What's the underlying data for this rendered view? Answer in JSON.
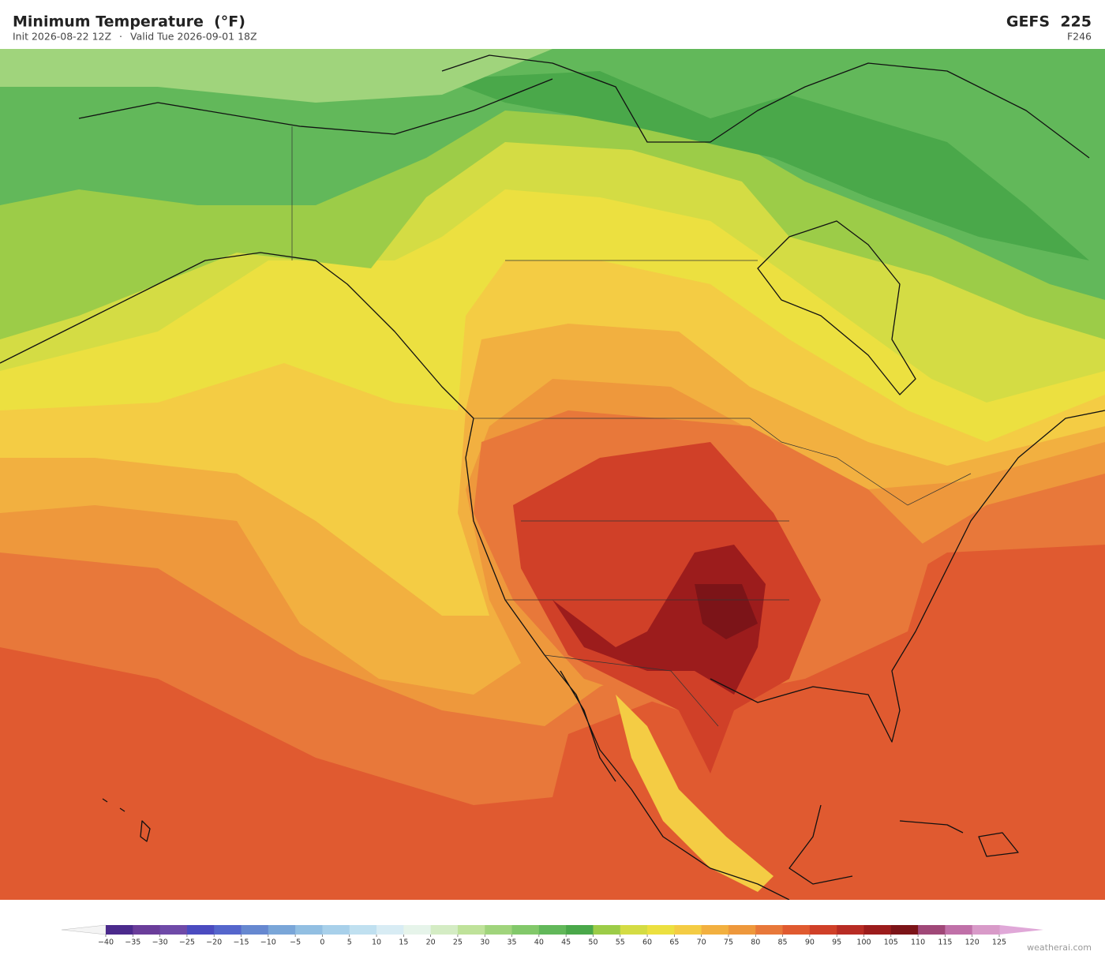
{
  "header": {
    "title": "Minimum Temperature  (°F)",
    "init": "Init 2026-08-22 12Z",
    "separator": "·",
    "valid": "Valid Tue 2026-09-01 18Z",
    "model": "GEFS  225",
    "forecast_hour": "F246"
  },
  "colorbar": {
    "ticks": [
      {
        "value": -40,
        "label": "−40"
      },
      {
        "value": -35,
        "label": "−35"
      },
      {
        "value": -30,
        "label": "−30"
      },
      {
        "value": -25,
        "label": "−25"
      },
      {
        "value": -20,
        "label": "−20"
      },
      {
        "value": -15,
        "label": "−15"
      },
      {
        "value": -10,
        "label": "−10"
      },
      {
        "value": -5,
        "label": "−5"
      },
      0,
      5,
      10,
      15,
      20,
      25,
      30,
      35,
      40,
      45,
      50,
      55,
      60,
      65,
      70,
      75,
      80,
      85,
      90,
      95,
      100,
      105,
      110,
      115,
      120,
      125
    ],
    "colors": [
      "#4b2a8c",
      "#6a3d9a",
      "#6f4aa8",
      "#4b4bc0",
      "#5566cc",
      "#6688d0",
      "#7aa6d8",
      "#92bfe2",
      "#a8d0ea",
      "#c0e0f0",
      "#d8ecf4",
      "#e6f4ea",
      "#d4ecc4",
      "#bfe29a",
      "#a0d47c",
      "#82c86a",
      "#62b85a",
      "#4aa84a",
      "#9ccc48",
      "#d4dc44",
      "#ece040",
      "#f4cc44",
      "#f2b040",
      "#ee983c",
      "#e8783a",
      "#e05a30",
      "#d04028",
      "#b82c24",
      "#9c1c1c",
      "#7c1418",
      "#a04878",
      "#c070a8",
      "#d89ac8"
    ],
    "under_color": "#f4f4f4",
    "over_color": "#e0a8d8"
  },
  "watermark": "weatherai.com"
}
